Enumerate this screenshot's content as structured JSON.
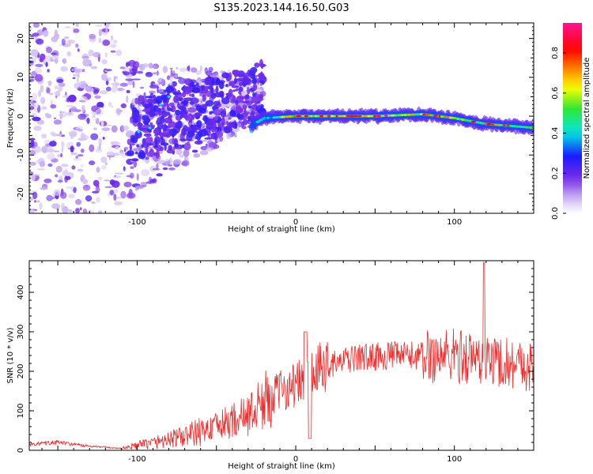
{
  "title": "S135.2023.144.16.50.G03",
  "colors": {
    "snr_line": "#ee2a2a",
    "colormap": [
      "#ffffff",
      "#cdb8f2",
      "#7a2ee6",
      "#1a1aff",
      "#00e6e6",
      "#33e633",
      "#ffff00",
      "#ff8000",
      "#ff0000",
      "#ff1493"
    ]
  },
  "chart_data": [
    {
      "type": "heatmap",
      "title": "S135.2023.144.16.50.G03",
      "xlabel": "Height of straight line (km)",
      "ylabel": "Frequency (Hz)",
      "xlim": [
        -168,
        150
      ],
      "ylim": [
        -25,
        24
      ],
      "xticks": [
        -100,
        0,
        100
      ],
      "yticks": [
        -20,
        -10,
        0,
        10,
        20
      ],
      "colorbar": {
        "label": "Normalized spectral amplitude",
        "range": [
          0,
          0.95
        ],
        "ticks": [
          "0.0",
          "0.2",
          "0.4",
          "0.6",
          "0.8"
        ],
        "tick_values": [
          0.0,
          0.2,
          0.4,
          0.6,
          0.8
        ]
      },
      "ridge": [
        {
          "x": -30,
          "y": -3
        },
        {
          "x": -20,
          "y": -0.5
        },
        {
          "x": 0,
          "y": 0
        },
        {
          "x": 50,
          "y": 0
        },
        {
          "x": 80,
          "y": 0.5
        },
        {
          "x": 100,
          "y": -0.5
        },
        {
          "x": 120,
          "y": -2
        },
        {
          "x": 150,
          "y": -3
        }
      ],
      "grid": false
    },
    {
      "type": "line",
      "xlabel": "Height of straight line (km)",
      "ylabel": "SNR (10 * v/v)",
      "xlim": [
        -168,
        150
      ],
      "ylim": [
        0,
        480
      ],
      "xticks": [
        -100,
        0,
        100
      ],
      "yticks": [
        0,
        100,
        200,
        300,
        400
      ],
      "trend": {
        "x": [
          -168,
          -150,
          -130,
          -110,
          -90,
          -70,
          -50,
          -30,
          -15,
          -5,
          5,
          20,
          40,
          60,
          80,
          100,
          120,
          140,
          150
        ],
        "y": [
          15,
          20,
          10,
          5,
          20,
          35,
          60,
          90,
          140,
          160,
          175,
          215,
          235,
          240,
          240,
          240,
          230,
          220,
          210
        ]
      },
      "grid": false
    }
  ]
}
